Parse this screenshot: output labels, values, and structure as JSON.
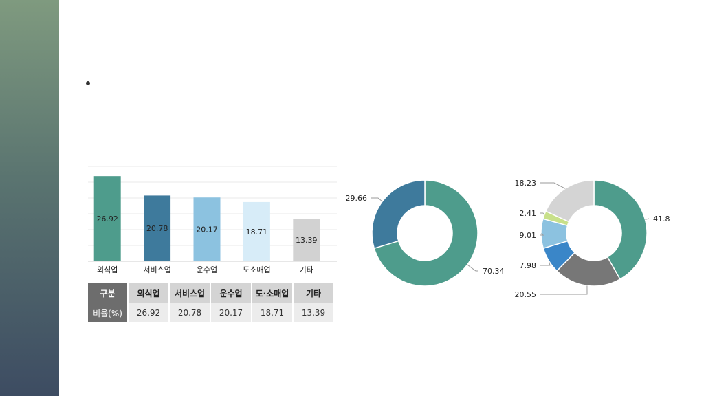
{
  "colors": {
    "sidebar_top": "#7f9a7f",
    "sidebar_bottom": "#3d4c62"
  },
  "chart_data": [
    {
      "type": "bar",
      "categories": [
        "외식업",
        "서비스업",
        "운수업",
        "도소매업",
        "기타"
      ],
      "values": [
        26.92,
        20.78,
        20.17,
        18.71,
        13.39
      ],
      "colors": [
        "#4e9c8c",
        "#3e7a9c",
        "#8cc2e0",
        "#d7ecf8",
        "#d2d2d2"
      ],
      "ylim": [
        0,
        30
      ],
      "grid": true
    },
    {
      "type": "pie",
      "donut": true,
      "values": [
        70.34,
        29.66
      ],
      "colors": [
        "#4e9c8c",
        "#3e7a9c"
      ]
    },
    {
      "type": "pie",
      "donut": true,
      "values": [
        41.8,
        20.55,
        7.98,
        9.01,
        2.41,
        18.23
      ],
      "colors": [
        "#4e9c8c",
        "#777777",
        "#3a86c8",
        "#8cc2e0",
        "#c8e08a",
        "#d4d4d4"
      ]
    }
  ],
  "table": {
    "header": [
      "구분",
      "외식업",
      "서비스업",
      "운수업",
      "도·소매업",
      "기타"
    ],
    "row": [
      "비율(%)",
      "26.92",
      "20.78",
      "20.17",
      "18.71",
      "13.39"
    ]
  }
}
